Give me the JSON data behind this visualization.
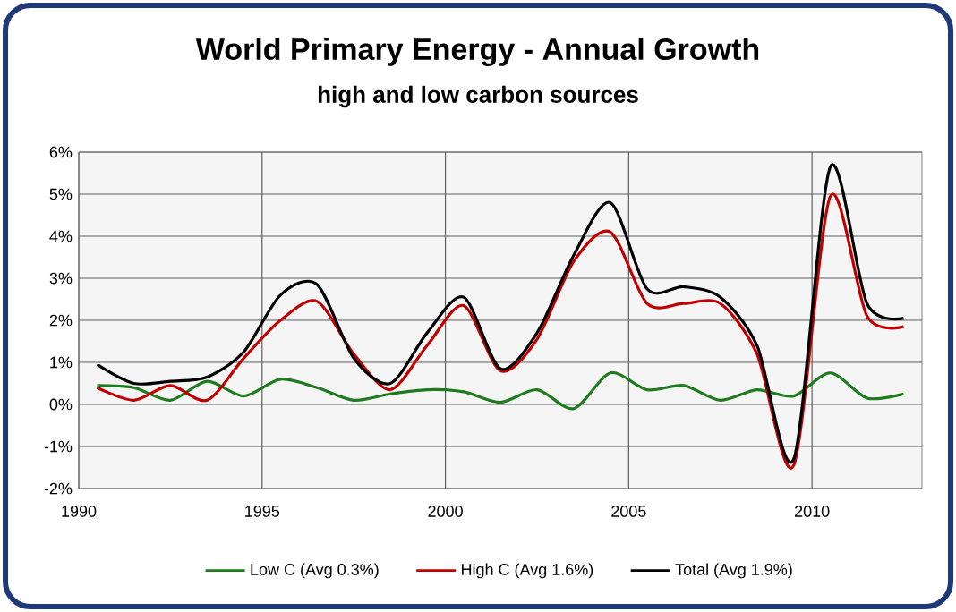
{
  "chart_data": {
    "type": "line",
    "title": "World Primary Energy - Annual Growth",
    "subtitle": "high and low carbon sources",
    "x": [
      1990.5,
      1991.5,
      1992.5,
      1993.5,
      1994.5,
      1995.5,
      1996.5,
      1997.5,
      1998.5,
      1999.5,
      2000.5,
      2001.5,
      2002.5,
      2003.5,
      2004.5,
      2005.5,
      2006.5,
      2007.5,
      2008.5,
      2009.5,
      2010.5,
      2011.5,
      2012.5
    ],
    "series": [
      {
        "name": "Low C (Avg 0.3%)",
        "color": "#1e7b1e",
        "values": [
          0.45,
          0.4,
          0.1,
          0.55,
          0.2,
          0.6,
          0.4,
          0.1,
          0.25,
          0.35,
          0.3,
          0.05,
          0.35,
          -0.1,
          0.75,
          0.35,
          0.45,
          0.1,
          0.35,
          0.2,
          0.75,
          0.15,
          0.25
        ]
      },
      {
        "name": "High C (Avg 1.6%)",
        "color": "#c00000",
        "values": [
          0.4,
          0.1,
          0.45,
          0.1,
          1.1,
          2.0,
          2.45,
          1.2,
          0.35,
          1.4,
          2.35,
          0.8,
          1.55,
          3.4,
          4.1,
          2.4,
          2.4,
          2.4,
          1.2,
          -1.45,
          4.95,
          2.1,
          1.85
        ]
      },
      {
        "name": "Total (Avg 1.9%)",
        "color": "#000000",
        "values": [
          0.95,
          0.5,
          0.55,
          0.65,
          1.25,
          2.6,
          2.85,
          1.1,
          0.5,
          1.7,
          2.55,
          0.85,
          1.7,
          3.55,
          4.8,
          2.75,
          2.8,
          2.55,
          1.4,
          -1.3,
          5.65,
          2.4,
          2.05
        ]
      }
    ],
    "xlim": [
      1990,
      2013
    ],
    "xticks": [
      1990,
      1995,
      2000,
      2005,
      2010
    ],
    "ylim": [
      -2,
      6
    ],
    "yticks": [
      {
        "value": -2,
        "label": "-2%"
      },
      {
        "value": -1,
        "label": "-1%"
      },
      {
        "value": 0,
        "label": "0%"
      },
      {
        "value": 1,
        "label": "1%"
      },
      {
        "value": 2,
        "label": "2%"
      },
      {
        "value": 3,
        "label": "3%"
      },
      {
        "value": 4,
        "label": "4%"
      },
      {
        "value": 5,
        "label": "5%"
      },
      {
        "value": 6,
        "label": "6%"
      }
    ],
    "grid": true,
    "legend": "bottom",
    "marker": "none",
    "line_style": "solid"
  }
}
